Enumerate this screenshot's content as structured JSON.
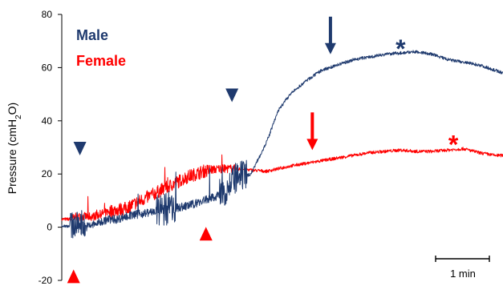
{
  "chart_data": {
    "type": "line",
    "title": "",
    "xlabel": "",
    "ylabel": "Pressure (cmH₂O)",
    "ylabel_parts": {
      "base": "Pressure (cmH",
      "sub": "2",
      "end": "O)"
    },
    "ylim": [
      -20,
      80
    ],
    "yticks": [
      -20,
      0,
      20,
      40,
      60,
      80
    ],
    "grid": false,
    "legend_position": "top-left",
    "scale_bar_label": "1 min",
    "colors": {
      "male": "#1f3a6e",
      "female": "#ff0000"
    },
    "series": [
      {
        "name": "Male",
        "color": "#1f3a6e",
        "x": [
          0,
          10,
          20,
          25,
          30,
          40,
          50,
          60,
          70,
          80,
          100,
          120,
          140,
          160,
          180,
          200,
          210,
          220,
          240,
          250,
          260,
          265,
          275,
          290,
          310,
          330,
          350,
          370,
          390,
          410,
          430,
          450,
          470,
          490,
          510,
          530,
          550,
          560
        ],
        "y": [
          0.5,
          0.5,
          1,
          2,
          0,
          1,
          2,
          3,
          3,
          4,
          5,
          6,
          7,
          8,
          10,
          12,
          15,
          18,
          20,
          26,
          32,
          36,
          44,
          50,
          55,
          59,
          61,
          63,
          64,
          65,
          65.5,
          66,
          65,
          63,
          62,
          61,
          59,
          58
        ]
      },
      {
        "name": "Female",
        "color": "#ff0000",
        "x": [
          0,
          10,
          20,
          30,
          40,
          50,
          60,
          80,
          100,
          120,
          140,
          160,
          180,
          200,
          220,
          240,
          260,
          290,
          310,
          330,
          350,
          370,
          390,
          410,
          430,
          450,
          470,
          490,
          510,
          530,
          550,
          560
        ],
        "y": [
          3,
          3,
          4,
          4,
          4,
          5,
          6,
          7,
          10,
          13,
          16,
          19,
          21,
          22,
          22,
          21.5,
          21,
          23,
          24,
          25,
          26,
          27,
          28,
          28.5,
          29,
          28.5,
          28.5,
          29,
          29.5,
          28,
          27,
          27
        ]
      }
    ],
    "annotations": {
      "male_arrowheads": [
        {
          "x": 23,
          "y": 27
        },
        {
          "x": 216,
          "y": 47
        }
      ],
      "female_arrowheads": [
        {
          "x": 15,
          "y": -21
        },
        {
          "x": 183,
          "y": -5
        }
      ],
      "male_arrow": {
        "x": 341,
        "y": 65
      },
      "female_arrow": {
        "x": 318,
        "y": 29
      },
      "male_star": {
        "x": 430,
        "y": 68,
        "label": "*"
      },
      "female_star": {
        "x": 497,
        "y": 32,
        "label": "*"
      }
    }
  }
}
